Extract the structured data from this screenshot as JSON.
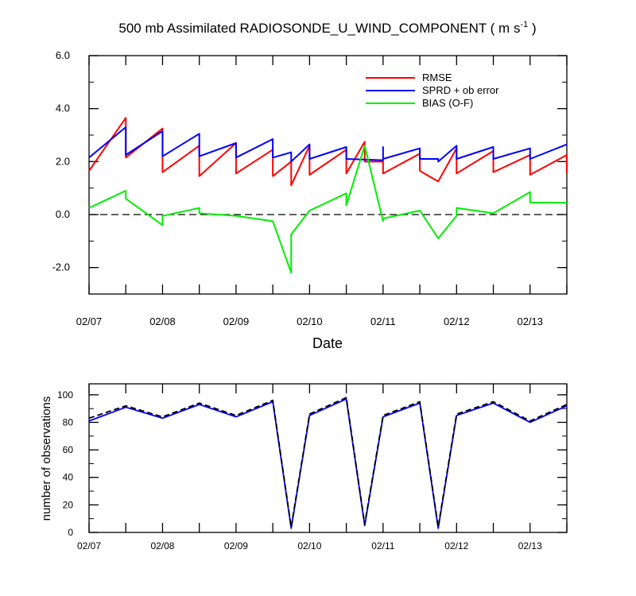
{
  "chart_data": [
    {
      "type": "line",
      "title": "500 mb Assimilated RADIOSONDE_U_WIND_COMPONENT ( m s",
      "title_superscript": "-1",
      "title_close": " )",
      "xlabel": "Date",
      "ylabel": "",
      "xlim": [
        "02/07 00Z",
        "02/13 12Z"
      ],
      "ylim": [
        -3.0,
        6.0
      ],
      "yticks": [
        "-2.0",
        "0.0",
        "2.0",
        "4.0",
        "6.0"
      ],
      "xticks": [
        "02/07",
        "02/08",
        "02/09",
        "02/10",
        "02/11",
        "02/12",
        "02/13"
      ],
      "zero_line": "dashed",
      "grid": false,
      "legend_position": "top-right",
      "series": [
        {
          "name": "RMSE",
          "color": "#ff0000",
          "points": [
            [
              "02/07 00Z",
              1.65
            ],
            [
              "02/07 12Z",
              3.65
            ],
            [
              "02/07 12Z",
              2.15
            ],
            [
              "02/08 00Z",
              3.25
            ],
            [
              "02/08 00Z",
              1.6
            ],
            [
              "02/08 12Z",
              2.6
            ],
            [
              "02/08 12Z",
              1.45
            ],
            [
              "02/09 00Z",
              2.7
            ],
            [
              "02/09 00Z",
              1.55
            ],
            [
              "02/09 12Z",
              2.45
            ],
            [
              "02/09 12Z",
              1.45
            ],
            [
              "02/09 18Z",
              2.0
            ],
            [
              "02/09 18Z",
              1.1
            ],
            [
              "02/10 00Z",
              2.6
            ],
            [
              "02/10 00Z",
              1.5
            ],
            [
              "02/10 12Z",
              2.45
            ],
            [
              "02/10 12Z",
              1.55
            ],
            [
              "02/10 18Z",
              2.75
            ],
            [
              "02/10 18Z",
              2.0
            ],
            [
              "02/11 00Z",
              2.0
            ],
            [
              "02/11 00Z",
              1.55
            ],
            [
              "02/11 12Z",
              2.3
            ],
            [
              "02/11 12Z",
              1.65
            ],
            [
              "02/11 18Z",
              1.25
            ],
            [
              "02/12 00Z",
              2.5
            ],
            [
              "02/12 00Z",
              1.55
            ],
            [
              "02/12 12Z",
              2.4
            ],
            [
              "02/12 12Z",
              1.6
            ],
            [
              "02/13 00Z",
              2.25
            ],
            [
              "02/13 00Z",
              1.5
            ],
            [
              "02/13 12Z",
              2.25
            ],
            [
              "02/13 12Z",
              1.55
            ]
          ]
        },
        {
          "name": "SPRD + ob error",
          "color": "#0000ff",
          "points": [
            [
              "02/07 00Z",
              2.15
            ],
            [
              "02/07 12Z",
              3.3
            ],
            [
              "02/07 12Z",
              2.25
            ],
            [
              "02/08 00Z",
              3.15
            ],
            [
              "02/08 00Z",
              2.2
            ],
            [
              "02/08 12Z",
              3.05
            ],
            [
              "02/08 12Z",
              2.2
            ],
            [
              "02/09 00Z",
              2.7
            ],
            [
              "02/09 00Z",
              2.15
            ],
            [
              "02/09 12Z",
              2.85
            ],
            [
              "02/09 12Z",
              2.15
            ],
            [
              "02/09 18Z",
              2.35
            ],
            [
              "02/09 18Z",
              2.0
            ],
            [
              "02/10 00Z",
              2.65
            ],
            [
              "02/10 00Z",
              2.1
            ],
            [
              "02/10 12Z",
              2.55
            ],
            [
              "02/10 12Z",
              2.1
            ],
            [
              "02/11 00Z",
              2.05
            ],
            [
              "02/11 00Z",
              2.55
            ],
            [
              "02/11 00Z",
              2.1
            ],
            [
              "02/11 12Z",
              2.5
            ],
            [
              "02/11 12Z",
              2.1
            ],
            [
              "02/11 18Z",
              2.1
            ],
            [
              "02/11 18Z",
              2.0
            ],
            [
              "02/12 00Z",
              2.6
            ],
            [
              "02/12 00Z",
              2.1
            ],
            [
              "02/12 12Z",
              2.55
            ],
            [
              "02/12 12Z",
              2.1
            ],
            [
              "02/13 00Z",
              2.5
            ],
            [
              "02/13 00Z",
              2.1
            ],
            [
              "02/13 12Z",
              2.65
            ]
          ]
        },
        {
          "name": "BIAS (O-F)",
          "color": "#00ee00",
          "points": [
            [
              "02/07 00Z",
              0.25
            ],
            [
              "02/07 12Z",
              0.9
            ],
            [
              "02/07 12Z",
              0.6
            ],
            [
              "02/08 00Z",
              -0.4
            ],
            [
              "02/08 00Z",
              -0.05
            ],
            [
              "02/08 12Z",
              0.25
            ],
            [
              "02/08 12Z",
              0.05
            ],
            [
              "02/09 00Z",
              -0.05
            ],
            [
              "02/09 12Z",
              -0.25
            ],
            [
              "02/09 18Z",
              -2.2
            ],
            [
              "02/09 18Z",
              -0.75
            ],
            [
              "02/10 00Z",
              0.15
            ],
            [
              "02/10 12Z",
              0.8
            ],
            [
              "02/10 12Z",
              0.35
            ],
            [
              "02/10 18Z",
              2.6
            ],
            [
              "02/11 00Z",
              -0.25
            ],
            [
              "02/11 00Z",
              -0.15
            ],
            [
              "02/11 12Z",
              0.15
            ],
            [
              "02/11 18Z",
              -0.9
            ],
            [
              "02/12 00Z",
              -0.05
            ],
            [
              "02/12 00Z",
              0.25
            ],
            [
              "02/12 12Z",
              0.05
            ],
            [
              "02/13 00Z",
              0.85
            ],
            [
              "02/13 00Z",
              0.45
            ],
            [
              "02/13 12Z",
              0.45
            ]
          ]
        }
      ]
    },
    {
      "type": "line",
      "title": "",
      "xlabel": "",
      "ylabel": "number of observations",
      "xlim": [
        "02/07 00Z",
        "02/13 12Z"
      ],
      "ylim": [
        0,
        108
      ],
      "yticks": [
        "0",
        "20",
        "40",
        "60",
        "80",
        "100"
      ],
      "xticks": [
        "02/07",
        "02/08",
        "02/09",
        "02/10",
        "02/11",
        "02/12",
        "02/13"
      ],
      "grid": false,
      "series": [
        {
          "style": "solid",
          "color": "#0000ff",
          "points": [
            [
              "02/07 00Z",
              81
            ],
            [
              "02/07 12Z",
              91
            ],
            [
              "02/08 00Z",
              83
            ],
            [
              "02/08 12Z",
              93
            ],
            [
              "02/09 00Z",
              84
            ],
            [
              "02/09 12Z",
              95
            ],
            [
              "02/09 18Z",
              3
            ],
            [
              "02/10 00Z",
              85
            ],
            [
              "02/10 12Z",
              97
            ],
            [
              "02/10 18Z",
              5
            ],
            [
              "02/11 00Z",
              84
            ],
            [
              "02/11 12Z",
              94
            ],
            [
              "02/11 18Z",
              3
            ],
            [
              "02/12 00Z",
              85
            ],
            [
              "02/12 12Z",
              94
            ],
            [
              "02/13 00Z",
              80
            ],
            [
              "02/13 12Z",
              92
            ]
          ]
        },
        {
          "style": "dashed",
          "color": "#000000",
          "points": [
            [
              "02/07 00Z",
              83
            ],
            [
              "02/07 12Z",
              92
            ],
            [
              "02/08 00Z",
              84
            ],
            [
              "02/08 12Z",
              94
            ],
            [
              "02/09 00Z",
              85
            ],
            [
              "02/09 12Z",
              96
            ],
            [
              "02/09 18Z",
              4
            ],
            [
              "02/10 00Z",
              86
            ],
            [
              "02/10 12Z",
              98
            ],
            [
              "02/10 18Z",
              6
            ],
            [
              "02/11 00Z",
              85
            ],
            [
              "02/11 12Z",
              95
            ],
            [
              "02/11 18Z",
              4
            ],
            [
              "02/12 00Z",
              86
            ],
            [
              "02/12 12Z",
              95
            ],
            [
              "02/13 00Z",
              81
            ],
            [
              "02/13 12Z",
              93
            ]
          ]
        }
      ]
    }
  ]
}
